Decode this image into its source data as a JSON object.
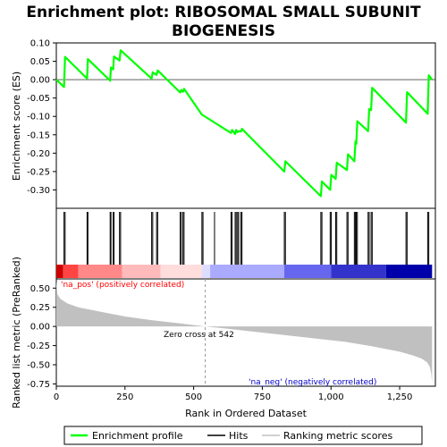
{
  "chart_data": {
    "type": "line",
    "title_lines": [
      "Enrichment plot: RIBOSOMAL SMALL SUBUNIT",
      "BIOGENESIS"
    ],
    "top_panel": {
      "ylabel": "Enrichment score (ES)",
      "ylim": [
        -0.35,
        0.1
      ],
      "yticks": [
        0.1,
        0.05,
        0.0,
        -0.05,
        -0.1,
        -0.15,
        -0.2,
        -0.25,
        -0.3
      ],
      "ytick_labels": [
        "0.10",
        "0.05",
        "0.00",
        "-0.05",
        "-0.10",
        "-0.15",
        "-0.20",
        "-0.25",
        "-0.30"
      ],
      "series": [
        {
          "name": "Enrichment profile",
          "color": "#00ff00",
          "x": [
            0,
            28,
            32,
            112,
            115,
            196,
            199,
            207,
            210,
            230,
            234,
            347,
            351,
            365,
            369,
            451,
            455,
            461,
            465,
            530,
            534,
            636,
            640,
            651,
            655,
            660,
            664,
            672,
            676,
            830,
            834,
            963,
            967,
            997,
            1001,
            1017,
            1021,
            1058,
            1062,
            1085,
            1089,
            1092,
            1096,
            1135,
            1139,
            1146,
            1150,
            1273,
            1277,
            1352,
            1356,
            1368
          ],
          "y": [
            0.0,
            -0.02,
            0.062,
            0.003,
            0.056,
            -0.003,
            0.033,
            0.028,
            0.063,
            0.052,
            0.08,
            0.003,
            0.02,
            0.013,
            0.025,
            -0.035,
            -0.028,
            -0.033,
            -0.025,
            -0.095,
            -0.097,
            -0.145,
            -0.137,
            -0.148,
            -0.137,
            -0.143,
            -0.14,
            -0.141,
            -0.134,
            -0.25,
            -0.222,
            -0.317,
            -0.277,
            -0.3,
            -0.259,
            -0.27,
            -0.226,
            -0.246,
            -0.203,
            -0.222,
            -0.168,
            -0.175,
            -0.113,
            -0.14,
            -0.08,
            -0.083,
            -0.022,
            -0.117,
            -0.034,
            -0.093,
            0.012,
            0.0
          ]
        }
      ]
    },
    "hits_panel": {
      "hit_ranks": [
        28,
        32,
        112,
        115,
        196,
        199,
        207,
        210,
        230,
        234,
        347,
        351,
        365,
        369,
        451,
        455,
        461,
        465,
        530,
        534,
        576,
        636,
        640,
        651,
        655,
        660,
        664,
        672,
        676,
        830,
        834,
        963,
        967,
        997,
        1001,
        1017,
        1021,
        1058,
        1062,
        1085,
        1089,
        1092,
        1096,
        1135,
        1139,
        1146,
        1150,
        1273,
        1277,
        1352,
        1356
      ]
    },
    "rank_panel": {
      "ylabel": "Ranked list metric (PreRanked)",
      "xlabel": "Rank in Ordered Dataset",
      "ylim": [
        -0.78,
        0.62
      ],
      "yticks": [
        0.5,
        0.25,
        0.0,
        -0.25,
        -0.5,
        -0.75
      ],
      "ytick_labels": [
        "0.50",
        "0.25",
        "0.00",
        "-0.25",
        "-0.50",
        "-0.75"
      ],
      "xlim": [
        0,
        1380
      ],
      "xticks": [
        0,
        250,
        500,
        750,
        1000,
        1250
      ],
      "xtick_labels": [
        "0",
        "250",
        "500",
        "750",
        "1,000",
        "1,250"
      ],
      "n_ranks": 1368,
      "metric_shape": {
        "x": [
          0,
          4,
          15,
          40,
          80,
          150,
          250,
          350,
          450,
          542,
          650,
          800,
          950,
          1050,
          1150,
          1250,
          1300,
          1330,
          1350,
          1360,
          1365,
          1368
        ],
        "y": [
          0.6,
          0.42,
          0.36,
          0.3,
          0.25,
          0.2,
          0.13,
          0.08,
          0.04,
          0.0,
          -0.04,
          -0.1,
          -0.16,
          -0.2,
          -0.26,
          -0.33,
          -0.38,
          -0.42,
          -0.47,
          -0.53,
          -0.62,
          -0.73
        ]
      },
      "metric_color": "#c0c0c0",
      "zero_cross_rank": 542,
      "zero_cross_label": "Zero cross at 542",
      "pos_label": "'na_pos' (positively correlated)",
      "pos_label_color": "#ff0000",
      "neg_label": "'na_neg' (negatively correlated)",
      "neg_label_color": "#0000cc"
    },
    "colorbar": {
      "stops": [
        "#cc0000",
        "#ff4444",
        "#ff8888",
        "#ffbbbb",
        "#ffdddd",
        "#ddddff",
        "#aaaaff",
        "#6666ee",
        "#3333cc",
        "#0000aa"
      ],
      "breaks": [
        0,
        25,
        80,
        240,
        380,
        530,
        560,
        830,
        1000,
        1200,
        1368
      ]
    },
    "legend": {
      "items": [
        {
          "label": "Enrichment profile",
          "color": "#00ff00",
          "kind": "line"
        },
        {
          "label": "Hits",
          "color": "#000000",
          "kind": "line"
        },
        {
          "label": "Ranking metric scores",
          "color": "#c0c0c0",
          "kind": "line"
        }
      ]
    }
  }
}
